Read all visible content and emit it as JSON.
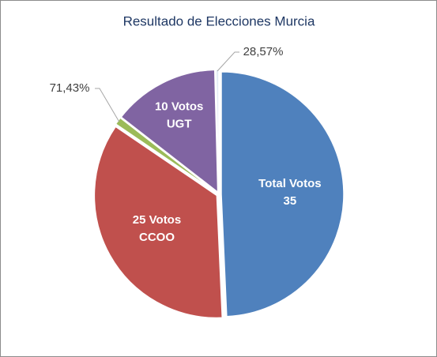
{
  "chart_data": {
    "type": "pie",
    "title": "Resultado de Elecciones Murcia",
    "values": [
      35,
      25,
      0.7143,
      10,
      0.2857
    ],
    "value_labels": [
      [
        "Total Votos",
        "35"
      ],
      [
        "25 Votos",
        "CCOO"
      ],
      [
        "71,43%"
      ],
      [
        "10 Votos",
        "UGT"
      ],
      [
        "28,57%"
      ]
    ],
    "colors": [
      "#4f81bd",
      "#c0504d",
      "#9bbb59",
      "#8064a2",
      "#e4ecf6"
    ]
  }
}
